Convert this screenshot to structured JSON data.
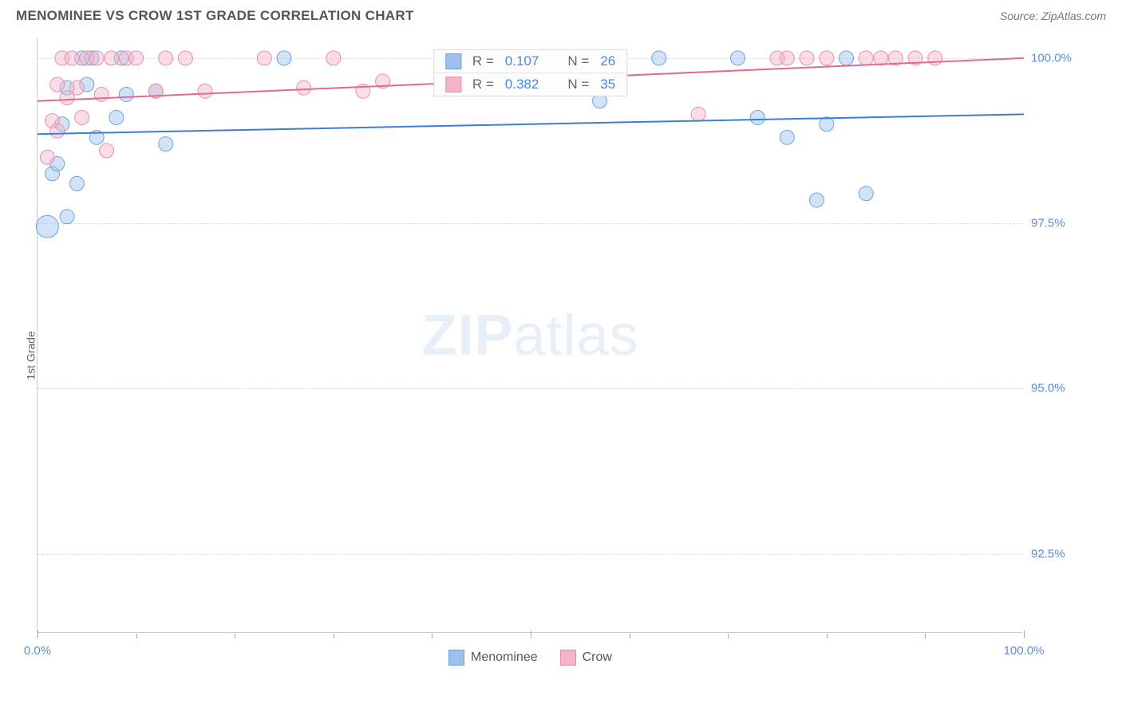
{
  "header": {
    "title": "MENOMINEE VS CROW 1ST GRADE CORRELATION CHART",
    "source": "Source: ZipAtlas.com"
  },
  "watermark": {
    "left": "ZIP",
    "right": "atlas"
  },
  "chart": {
    "type": "scatter",
    "ylabel": "1st Grade",
    "xlim": [
      0,
      100
    ],
    "ylim": [
      91.3,
      100.3
    ],
    "yticks": [
      {
        "v": 100.0,
        "label": "100.0%"
      },
      {
        "v": 97.5,
        "label": "97.5%"
      },
      {
        "v": 95.0,
        "label": "95.0%"
      },
      {
        "v": 92.5,
        "label": "92.5%"
      }
    ],
    "xticks_major": [
      0,
      50,
      100
    ],
    "xticks_minor": [
      10,
      20,
      30,
      40,
      60,
      70,
      80,
      90
    ],
    "xtick_labels": [
      {
        "v": 0,
        "label": "0.0%"
      },
      {
        "v": 100,
        "label": "100.0%"
      }
    ],
    "marker_radius": 9,
    "marker_opacity": 0.45,
    "line_width": 2,
    "grid_color": "#dddddd",
    "axis_color": "#cccccc",
    "background_color": "#ffffff",
    "title_color": "#555555",
    "tick_label_color": "#5b8dd6",
    "series": [
      {
        "name": "Menominee",
        "color_fill": "#9ec0ee",
        "color_stroke": "#6fa3e0",
        "line_color": "#3b7dd8",
        "R": "0.107",
        "N": "26",
        "trend": {
          "x1": 0,
          "y1": 98.85,
          "x2": 100,
          "y2": 99.15
        },
        "points": [
          {
            "x": 1,
            "y": 97.45,
            "r": 14
          },
          {
            "x": 1.5,
            "y": 98.25,
            "r": 9
          },
          {
            "x": 2,
            "y": 98.4,
            "r": 9
          },
          {
            "x": 2.5,
            "y": 99.0,
            "r": 9
          },
          {
            "x": 3,
            "y": 99.55,
            "r": 9
          },
          {
            "x": 3,
            "y": 97.6,
            "r": 9
          },
          {
            "x": 4,
            "y": 98.1,
            "r": 9
          },
          {
            "x": 4.5,
            "y": 100.0,
            "r": 9
          },
          {
            "x": 5,
            "y": 99.6,
            "r": 9
          },
          {
            "x": 5.5,
            "y": 100.0,
            "r": 9
          },
          {
            "x": 6,
            "y": 98.8,
            "r": 9
          },
          {
            "x": 8,
            "y": 99.1,
            "r": 9
          },
          {
            "x": 8.5,
            "y": 100.0,
            "r": 9
          },
          {
            "x": 9,
            "y": 99.45,
            "r": 9
          },
          {
            "x": 12,
            "y": 99.5,
            "r": 9
          },
          {
            "x": 13,
            "y": 98.7,
            "r": 9
          },
          {
            "x": 25,
            "y": 100.0,
            "r": 9
          },
          {
            "x": 57,
            "y": 99.35,
            "r": 9
          },
          {
            "x": 63,
            "y": 100.0,
            "r": 9
          },
          {
            "x": 71,
            "y": 100.0,
            "r": 9
          },
          {
            "x": 73,
            "y": 99.1,
            "r": 9
          },
          {
            "x": 76,
            "y": 98.8,
            "r": 9
          },
          {
            "x": 79,
            "y": 97.85,
            "r": 9
          },
          {
            "x": 80,
            "y": 99.0,
            "r": 9
          },
          {
            "x": 82,
            "y": 100.0,
            "r": 9
          },
          {
            "x": 84,
            "y": 97.95,
            "r": 9
          }
        ]
      },
      {
        "name": "Crow",
        "color_fill": "#f4b4c7",
        "color_stroke": "#e98fab",
        "line_color": "#e06a91",
        "R": "0.382",
        "N": "35",
        "trend": {
          "x1": 0,
          "y1": 99.35,
          "x2": 100,
          "y2": 100.0
        },
        "points": [
          {
            "x": 1,
            "y": 98.5,
            "r": 9
          },
          {
            "x": 1.5,
            "y": 99.05,
            "r": 9
          },
          {
            "x": 2,
            "y": 98.9,
            "r": 9
          },
          {
            "x": 2,
            "y": 99.6,
            "r": 9
          },
          {
            "x": 2.5,
            "y": 100.0,
            "r": 9
          },
          {
            "x": 3,
            "y": 99.4,
            "r": 9
          },
          {
            "x": 3.5,
            "y": 100.0,
            "r": 9
          },
          {
            "x": 4,
            "y": 99.55,
            "r": 9
          },
          {
            "x": 4.5,
            "y": 99.1,
            "r": 9
          },
          {
            "x": 5,
            "y": 100.0,
            "r": 9
          },
          {
            "x": 6,
            "y": 100.0,
            "r": 9
          },
          {
            "x": 6.5,
            "y": 99.45,
            "r": 9
          },
          {
            "x": 7,
            "y": 98.6,
            "r": 9
          },
          {
            "x": 7.5,
            "y": 100.0,
            "r": 9
          },
          {
            "x": 9,
            "y": 100.0,
            "r": 9
          },
          {
            "x": 10,
            "y": 100.0,
            "r": 9
          },
          {
            "x": 12,
            "y": 99.5,
            "r": 9
          },
          {
            "x": 13,
            "y": 100.0,
            "r": 9
          },
          {
            "x": 15,
            "y": 100.0,
            "r": 9
          },
          {
            "x": 17,
            "y": 99.5,
            "r": 9
          },
          {
            "x": 23,
            "y": 100.0,
            "r": 9
          },
          {
            "x": 27,
            "y": 99.55,
            "r": 9
          },
          {
            "x": 30,
            "y": 100.0,
            "r": 9
          },
          {
            "x": 33,
            "y": 99.5,
            "r": 9
          },
          {
            "x": 35,
            "y": 99.65,
            "r": 9
          },
          {
            "x": 67,
            "y": 99.15,
            "r": 9
          },
          {
            "x": 75,
            "y": 100.0,
            "r": 9
          },
          {
            "x": 76,
            "y": 100.0,
            "r": 9
          },
          {
            "x": 78,
            "y": 100.0,
            "r": 9
          },
          {
            "x": 80,
            "y": 100.0,
            "r": 9
          },
          {
            "x": 84,
            "y": 100.0,
            "r": 9
          },
          {
            "x": 85.5,
            "y": 100.0,
            "r": 9
          },
          {
            "x": 87,
            "y": 100.0,
            "r": 9
          },
          {
            "x": 89,
            "y": 100.0,
            "r": 9
          },
          {
            "x": 91,
            "y": 100.0,
            "r": 9
          }
        ]
      }
    ]
  },
  "stats_box": {
    "r_label": "R =",
    "n_label": "N ="
  },
  "legend": {
    "items": [
      {
        "label": "Menominee",
        "fill": "#9ec0ee",
        "stroke": "#6fa3e0"
      },
      {
        "label": "Crow",
        "fill": "#f4b4c7",
        "stroke": "#e98fab"
      }
    ]
  }
}
